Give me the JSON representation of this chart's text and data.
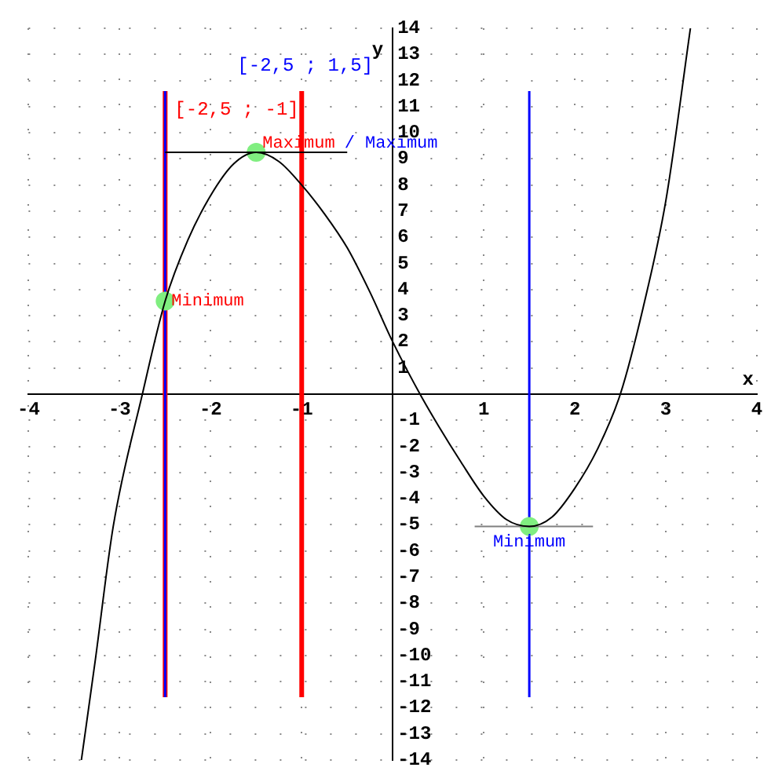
{
  "chart_data": {
    "type": "line",
    "xlabel": "x",
    "ylabel": "y",
    "xlim": [
      -4,
      4
    ],
    "ylim": [
      -14,
      14
    ],
    "xticks": [
      -4,
      -3,
      -2,
      -1,
      1,
      2,
      3,
      4
    ],
    "yticks": [
      -14,
      -13,
      -12,
      -11,
      -10,
      -9,
      -8,
      -7,
      -6,
      -5,
      -4,
      -3,
      -2,
      -1,
      1,
      2,
      3,
      4,
      5,
      6,
      7,
      8,
      9,
      10,
      11,
      12,
      13,
      14
    ],
    "grid": true,
    "marker": "none",
    "line_style": "solid",
    "series": [
      {
        "color": "#000000",
        "x": [
          -3.42,
          -3.27,
          -3.07,
          -2.75,
          -2.5,
          -2.25,
          -2,
          -1.75,
          -1.5,
          -1.25,
          -1,
          -0.75,
          -0.5,
          -0.25,
          0,
          0.3,
          0.5,
          0.75,
          1,
          1.25,
          1.5,
          1.75,
          2,
          2.25,
          2.5,
          2.75,
          3,
          3.27
        ],
        "values": [
          -14,
          -10.25,
          -5.06,
          0,
          3.56,
          5.9,
          7.6,
          8.8,
          9.25,
          8.9,
          8,
          6.9,
          5.6,
          3.9,
          2,
          0,
          -1.2,
          -2.6,
          -3.9,
          -4.8,
          -5.06,
          -4.7,
          -3.6,
          -2.1,
          0,
          3.3,
          7.4,
          14
        ]
      },
      {
        "type": "line",
        "color": "#000000",
        "x": [
          -2.5,
          -0.5
        ],
        "values": [
          9.25,
          9.25
        ]
      },
      {
        "type": "line",
        "color": "#808080",
        "x": [
          0.9,
          2.2
        ],
        "values": [
          -5.06,
          -5.06
        ]
      },
      {
        "type": "scatter",
        "color": "#80ee80",
        "marker": "circle",
        "x": [
          -2.5,
          -1.5,
          1.5
        ],
        "values": [
          3.56,
          9.25,
          -5.06
        ]
      }
    ],
    "ref_lines": [
      {
        "axis": "x",
        "value": -2.5,
        "label": "[-2,5 ; -1]",
        "color": "#ff0000"
      },
      {
        "axis": "x",
        "value": -1,
        "color": "#ff0000"
      },
      {
        "axis": "x",
        "value": -2.5,
        "label": "[-2,5 ; 1,5]",
        "color": "#0000ff"
      },
      {
        "axis": "x",
        "value": 1.5,
        "color": "#0000ff"
      }
    ],
    "annotations": [
      {
        "text": "Minimum",
        "x": -2.5,
        "y": 3.56
      },
      {
        "text": "Maximum",
        "x": -1.5,
        "y": 9.25
      },
      "/ Maximum",
      {
        "text": "Minimum",
        "x": 1.5,
        "y": -5.06
      }
    ],
    "legend": false
  }
}
